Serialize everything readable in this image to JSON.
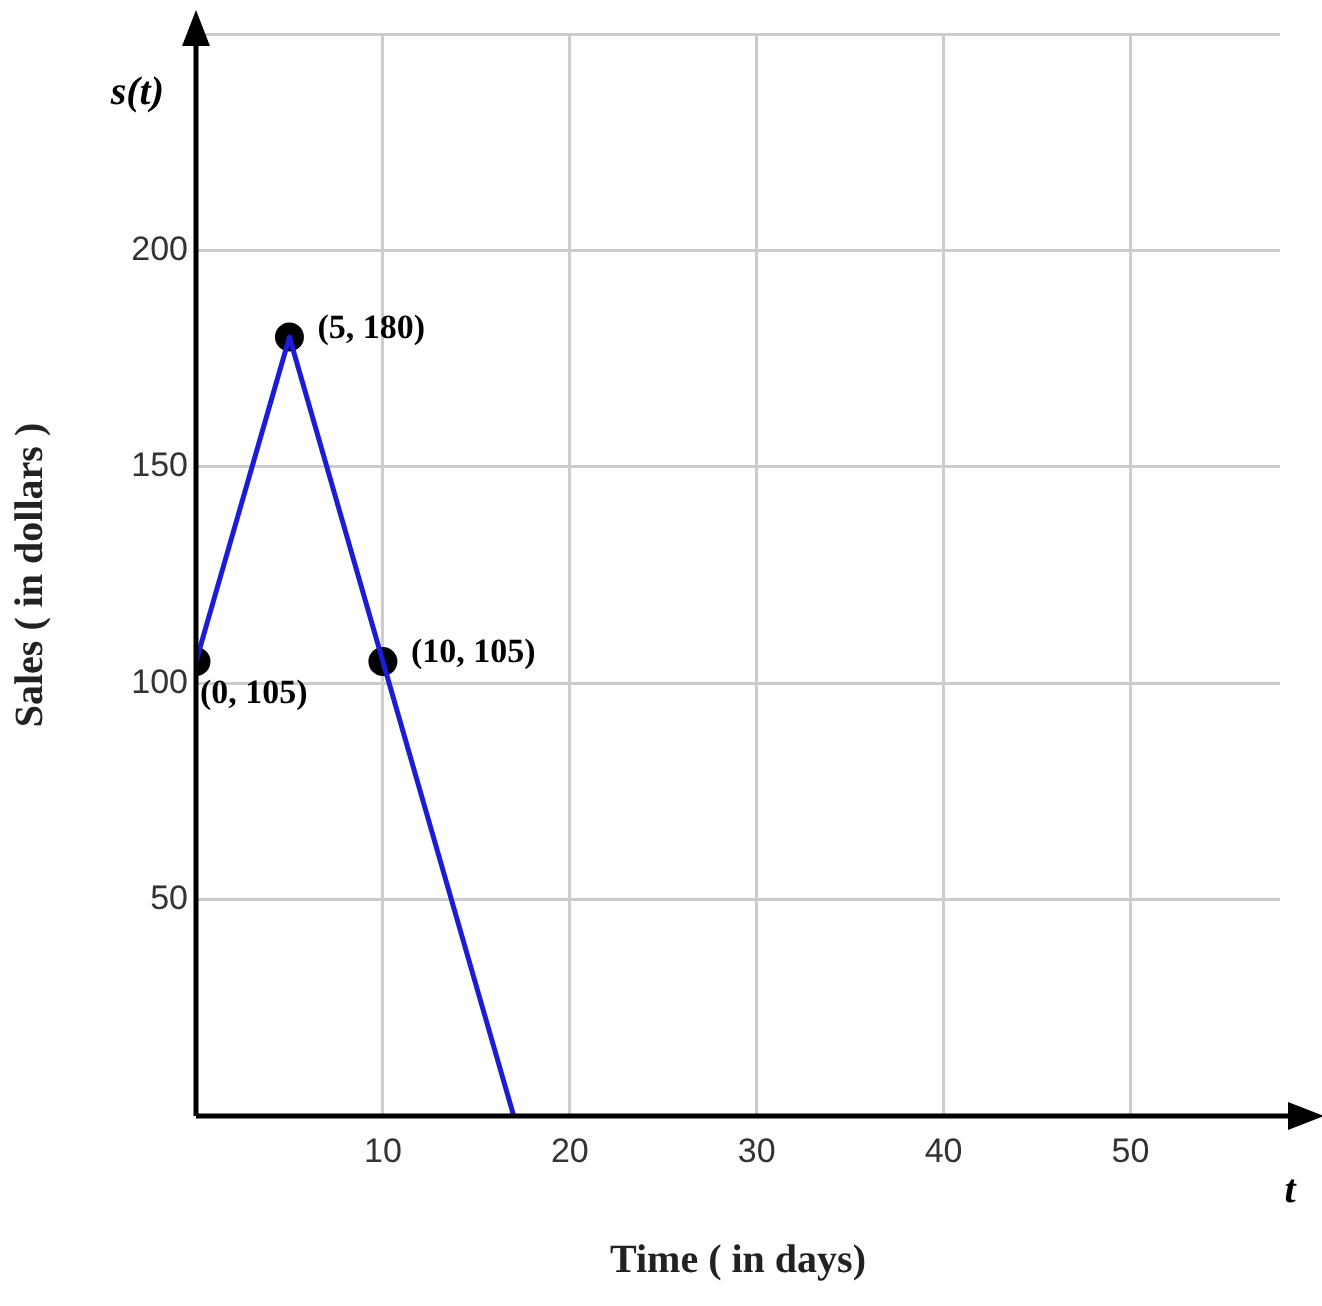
{
  "chart_data": {
    "type": "line",
    "xlabel": "Time ( in days)",
    "ylabel": "Sales ( in dollars )",
    "xlim": [
      0,
      58
    ],
    "ylim": [
      0,
      250
    ],
    "xticks": [
      10,
      20,
      30,
      40,
      50
    ],
    "yticks": [
      50,
      100,
      150,
      200,
      {
        "value": 250,
        "label": null
      }
    ],
    "grid": true,
    "legend": false,
    "series": [
      {
        "color": "#1c1cd6",
        "x": [
          0,
          5,
          10,
          17
        ],
        "values": [
          105,
          180,
          105,
          0
        ],
        "marker": "none"
      },
      {
        "type": "scatter",
        "color": "#000000",
        "x": [
          0,
          5,
          10
        ],
        "values": [
          105,
          180,
          105
        ],
        "marker": "circle"
      }
    ],
    "annotations": [
      "s(t)",
      "t",
      {
        "text": "(0, 105)",
        "x": 0,
        "y": 105
      },
      {
        "text": "(5, 180)",
        "x": 5,
        "y": 180
      },
      {
        "text": "(10, 105)",
        "x": 10,
        "y": 105
      }
    ]
  }
}
